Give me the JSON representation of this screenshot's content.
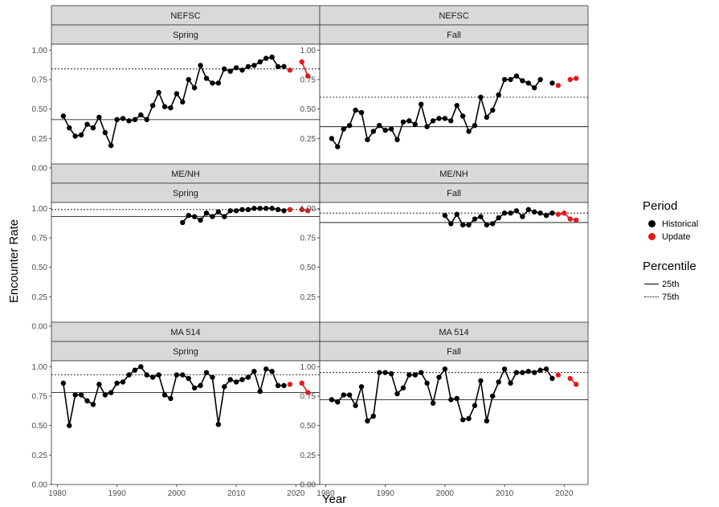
{
  "colors": {
    "historical": "#000000",
    "update": "#e31a1c",
    "strip_bg": "#d9d9d9",
    "grid": "#ebebeb"
  },
  "axis_labels": {
    "x": "Year",
    "y": "Encounter Rate"
  },
  "legend": {
    "period": {
      "title": "Period",
      "items": [
        "Historical",
        "Update"
      ]
    },
    "percentile": {
      "title": "Percentile",
      "items": [
        "25th",
        "75th"
      ]
    }
  },
  "chart_data": [
    {
      "type": "line",
      "survey": "NEFSC",
      "season": "Spring",
      "xlim": [
        1979,
        2024
      ],
      "ylim": [
        0,
        1.05
      ],
      "xticks": [
        1980,
        1990,
        2000,
        2010,
        2020
      ],
      "yticks": [
        "0.00",
        "0.25",
        "0.50",
        "0.75",
        "1.00"
      ],
      "p25": 0.41,
      "p75": 0.84,
      "series": [
        {
          "name": "Historical",
          "x": [
            1981,
            1982,
            1983,
            1984,
            1985,
            1986,
            1987,
            1988,
            1989,
            1990,
            1991,
            1992,
            1993,
            1994,
            1995,
            1996,
            1997,
            1998,
            1999,
            2000,
            2001,
            2002,
            2003,
            2004,
            2005,
            2006,
            2007,
            2008,
            2009,
            2010,
            2011,
            2012,
            2013,
            2014,
            2015,
            2016,
            2017,
            2018
          ],
          "y": [
            0.44,
            0.34,
            0.27,
            0.28,
            0.37,
            0.34,
            0.43,
            0.3,
            0.19,
            0.41,
            0.42,
            0.4,
            0.41,
            0.45,
            0.41,
            0.53,
            0.64,
            0.52,
            0.51,
            0.63,
            0.56,
            0.75,
            0.68,
            0.87,
            0.76,
            0.72,
            0.72,
            0.84,
            0.82,
            0.85,
            0.83,
            0.86,
            0.87,
            0.9,
            0.93,
            0.94,
            0.86,
            0.86
          ]
        },
        {
          "name": "Update",
          "x": [
            2019,
            2021,
            2022
          ],
          "y": [
            0.83,
            0.9,
            0.78
          ],
          "breaks": [
            2020
          ]
        }
      ]
    },
    {
      "type": "line",
      "survey": "NEFSC",
      "season": "Fall",
      "xlim": [
        1979,
        2024
      ],
      "ylim": [
        0,
        1.05
      ],
      "xticks": [
        1980,
        1990,
        2000,
        2010,
        2020
      ],
      "yticks": [
        "0.00",
        "0.25",
        "0.50",
        "0.75",
        "1.00"
      ],
      "p25": 0.35,
      "p75": 0.6,
      "series": [
        {
          "name": "Historical",
          "x": [
            1981,
            1982,
            1983,
            1984,
            1985,
            1986,
            1987,
            1988,
            1989,
            1990,
            1991,
            1992,
            1993,
            1994,
            1995,
            1996,
            1997,
            1998,
            1999,
            2000,
            2001,
            2002,
            2003,
            2004,
            2005,
            2006,
            2007,
            2008,
            2009,
            2010,
            2011,
            2012,
            2013,
            2014,
            2015,
            2016,
            2018
          ],
          "y": [
            0.25,
            0.18,
            0.33,
            0.36,
            0.49,
            0.47,
            0.24,
            0.31,
            0.36,
            0.32,
            0.33,
            0.24,
            0.39,
            0.4,
            0.37,
            0.54,
            0.35,
            0.4,
            0.42,
            0.42,
            0.4,
            0.53,
            0.44,
            0.31,
            0.36,
            0.6,
            0.43,
            0.49,
            0.62,
            0.75,
            0.75,
            0.78,
            0.74,
            0.72,
            0.68,
            0.75,
            0.72
          ],
          "breaks": [
            2017
          ]
        },
        {
          "name": "Update",
          "x": [
            2019,
            2021,
            2022
          ],
          "y": [
            0.7,
            0.75,
            0.76
          ],
          "breaks": [
            2020
          ]
        }
      ]
    },
    {
      "type": "line",
      "survey": "ME/NH",
      "season": "Spring",
      "xlim": [
        1979,
        2024
      ],
      "ylim": [
        0,
        1.05
      ],
      "xticks": [
        1980,
        1990,
        2000,
        2010,
        2020
      ],
      "yticks": [
        "0.00",
        "0.25",
        "0.50",
        "0.75",
        "1.00"
      ],
      "p25": 0.93,
      "p75": 0.99,
      "series": [
        {
          "name": "Historical",
          "x": [
            2001,
            2002,
            2003,
            2004,
            2005,
            2006,
            2007,
            2008,
            2009,
            2010,
            2011,
            2012,
            2013,
            2014,
            2015,
            2016,
            2017,
            2018
          ],
          "y": [
            0.88,
            0.94,
            0.93,
            0.9,
            0.96,
            0.93,
            0.97,
            0.93,
            0.98,
            0.98,
            0.99,
            0.99,
            1.0,
            1.0,
            1.0,
            1.0,
            0.99,
            0.98
          ]
        },
        {
          "name": "Update",
          "x": [
            2019,
            2021,
            2022
          ],
          "y": [
            0.99,
            0.99,
            0.98
          ],
          "breaks": [
            2020
          ]
        }
      ]
    },
    {
      "type": "line",
      "survey": "ME/NH",
      "season": "Fall",
      "xlim": [
        1979,
        2024
      ],
      "ylim": [
        0,
        1.05
      ],
      "xticks": [
        1980,
        1990,
        2000,
        2010,
        2020
      ],
      "yticks": [
        "0.00",
        "0.25",
        "0.50",
        "0.75",
        "1.00"
      ],
      "p25": 0.88,
      "p75": 0.96,
      "series": [
        {
          "name": "Historical",
          "x": [
            2000,
            2001,
            2002,
            2003,
            2004,
            2005,
            2006,
            2007,
            2008,
            2009,
            2010,
            2011,
            2012,
            2013,
            2014,
            2015,
            2016,
            2017,
            2018
          ],
          "y": [
            0.94,
            0.87,
            0.95,
            0.86,
            0.86,
            0.91,
            0.93,
            0.86,
            0.87,
            0.92,
            0.96,
            0.96,
            0.98,
            0.93,
            0.99,
            0.97,
            0.96,
            0.94,
            0.96
          ]
        },
        {
          "name": "Update",
          "x": [
            2019,
            2020,
            2021,
            2022
          ],
          "y": [
            0.95,
            0.96,
            0.91,
            0.9
          ]
        }
      ]
    },
    {
      "type": "line",
      "survey": "MA 514",
      "season": "Spring",
      "xlim": [
        1979,
        2024
      ],
      "ylim": [
        0,
        1.05
      ],
      "xticks": [
        1980,
        1990,
        2000,
        2010,
        2020
      ],
      "yticks": [
        "0.00",
        "0.25",
        "0.50",
        "0.75",
        "1.00"
      ],
      "p25": 0.78,
      "p75": 0.93,
      "series": [
        {
          "name": "Historical",
          "x": [
            1981,
            1982,
            1983,
            1984,
            1985,
            1986,
            1987,
            1988,
            1989,
            1990,
            1991,
            1992,
            1993,
            1994,
            1995,
            1996,
            1997,
            1998,
            1999,
            2000,
            2001,
            2002,
            2003,
            2004,
            2005,
            2006,
            2007,
            2008,
            2009,
            2010,
            2011,
            2012,
            2013,
            2014,
            2015,
            2016,
            2017,
            2018
          ],
          "y": [
            0.86,
            0.5,
            0.76,
            0.76,
            0.71,
            0.68,
            0.85,
            0.76,
            0.78,
            0.86,
            0.87,
            0.93,
            0.97,
            1.0,
            0.93,
            0.91,
            0.93,
            0.76,
            0.73,
            0.93,
            0.93,
            0.9,
            0.82,
            0.84,
            0.95,
            0.91,
            0.51,
            0.83,
            0.89,
            0.87,
            0.89,
            0.91,
            0.96,
            0.79,
            0.98,
            0.96,
            0.84,
            0.84
          ]
        },
        {
          "name": "Update",
          "x": [
            2019,
            2021,
            2022
          ],
          "y": [
            0.85,
            0.86,
            0.78
          ],
          "breaks": [
            2020
          ]
        }
      ]
    },
    {
      "type": "line",
      "survey": "MA 514",
      "season": "Fall",
      "xlim": [
        1979,
        2024
      ],
      "ylim": [
        0,
        1.05
      ],
      "xticks": [
        1980,
        1990,
        2000,
        2010,
        2020
      ],
      "yticks": [
        "0.00",
        "0.25",
        "0.50",
        "0.75",
        "1.00"
      ],
      "p25": 0.72,
      "p75": 0.95,
      "series": [
        {
          "name": "Historical",
          "x": [
            1981,
            1982,
            1983,
            1984,
            1985,
            1986,
            1987,
            1988,
            1989,
            1990,
            1991,
            1992,
            1993,
            1994,
            1995,
            1996,
            1997,
            1998,
            1999,
            2000,
            2001,
            2002,
            2003,
            2004,
            2005,
            2006,
            2007,
            2008,
            2009,
            2010,
            2011,
            2012,
            2013,
            2014,
            2015,
            2016,
            2017,
            2018
          ],
          "y": [
            0.72,
            0.7,
            0.76,
            0.76,
            0.67,
            0.83,
            0.54,
            0.58,
            0.95,
            0.95,
            0.94,
            0.77,
            0.82,
            0.93,
            0.93,
            0.95,
            0.86,
            0.69,
            0.91,
            0.98,
            0.72,
            0.73,
            0.55,
            0.56,
            0.67,
            0.88,
            0.54,
            0.75,
            0.87,
            0.98,
            0.86,
            0.95,
            0.95,
            0.96,
            0.95,
            0.97,
            0.98,
            0.9
          ]
        },
        {
          "name": "Update",
          "x": [
            2019,
            2021,
            2022
          ],
          "y": [
            0.93,
            0.9,
            0.85
          ],
          "breaks": [
            2020
          ]
        }
      ]
    }
  ]
}
